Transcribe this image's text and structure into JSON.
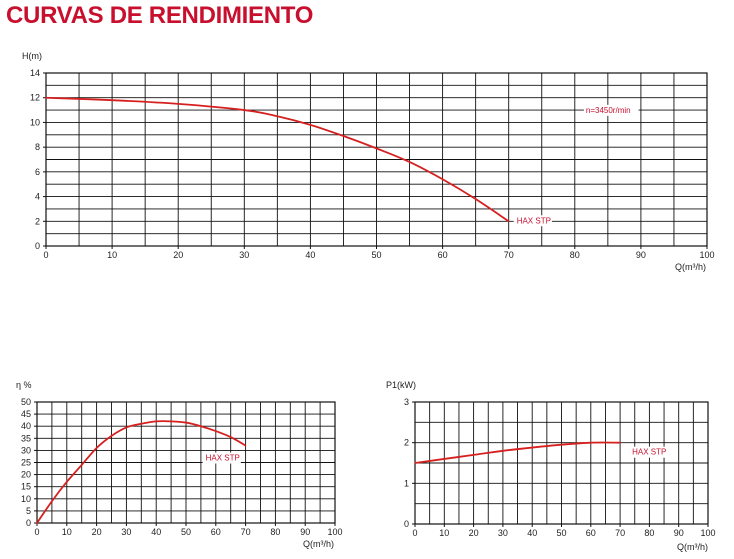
{
  "page": {
    "title": "CURVAS DE RENDIMIENTO"
  },
  "chart_data": [
    {
      "id": "head",
      "type": "line",
      "ylabel": "H(m)",
      "xlabel": "Q(m³/h)",
      "xlim": [
        0,
        100
      ],
      "ylim": [
        0,
        14
      ],
      "x_ticks": [
        0,
        10,
        20,
        30,
        40,
        50,
        60,
        70,
        80,
        90,
        100
      ],
      "y_ticks": [
        0,
        2,
        4,
        6,
        8,
        10,
        12,
        14
      ],
      "grid": true,
      "line_color": "#d62020",
      "annotations": [
        "n=3450r/min",
        "HAX STP"
      ],
      "series": [
        {
          "name": "HAX STP",
          "x": [
            0,
            10,
            20,
            30,
            35,
            40,
            45,
            50,
            55,
            60,
            65,
            70
          ],
          "y": [
            12.0,
            11.8,
            11.5,
            11.0,
            10.5,
            9.8,
            8.9,
            7.9,
            6.8,
            5.4,
            3.8,
            2.0
          ]
        }
      ]
    },
    {
      "id": "efficiency",
      "type": "line",
      "ylabel": "η %",
      "xlabel": "Q(m³/h)",
      "xlim": [
        0,
        100
      ],
      "ylim": [
        0,
        50
      ],
      "x_ticks": [
        0,
        10,
        20,
        30,
        40,
        50,
        60,
        70,
        80,
        90,
        100
      ],
      "y_ticks": [
        0,
        5,
        10,
        15,
        20,
        25,
        30,
        35,
        40,
        45,
        50
      ],
      "grid": true,
      "line_color": "#d62020",
      "annotations": [
        "HAX STP"
      ],
      "series": [
        {
          "name": "HAX STP",
          "x": [
            0,
            5,
            10,
            15,
            20,
            25,
            30,
            35,
            40,
            45,
            50,
            55,
            60,
            65,
            70
          ],
          "y": [
            0,
            9,
            17,
            24,
            31,
            36,
            39.5,
            41,
            42,
            42,
            41.5,
            40,
            38,
            35.5,
            32
          ]
        }
      ]
    },
    {
      "id": "power",
      "type": "line",
      "ylabel": "P1(kW)",
      "xlabel": "Q(m³/h)",
      "xlim": [
        0,
        100
      ],
      "ylim": [
        0,
        3
      ],
      "x_ticks": [
        0,
        10,
        20,
        30,
        40,
        50,
        60,
        70,
        80,
        90,
        100
      ],
      "y_ticks": [
        0,
        1,
        2,
        3
      ],
      "grid": true,
      "line_color": "#d62020",
      "annotations": [
        "HAX STP"
      ],
      "series": [
        {
          "name": "HAX STP",
          "x": [
            0,
            10,
            20,
            30,
            40,
            50,
            60,
            70
          ],
          "y": [
            1.5,
            1.6,
            1.7,
            1.8,
            1.88,
            1.95,
            2.0,
            2.0
          ]
        }
      ]
    }
  ]
}
